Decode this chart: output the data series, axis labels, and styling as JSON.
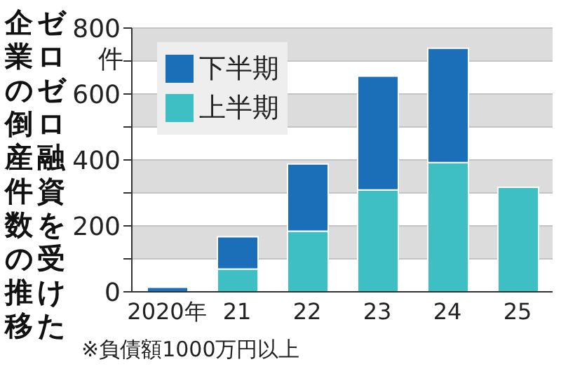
{
  "chart_data": {
    "type": "bar",
    "title": "ゼロゼロ融資を受けた企業の倒産件数の推移",
    "ylabel": "件",
    "categories": [
      "2020年",
      "21",
      "22",
      "23",
      "24",
      "25"
    ],
    "stacked": true,
    "series": [
      {
        "name": "上半期",
        "color": "#3dbfc4",
        "values": [
          0,
          69,
          184,
          309,
          392,
          317
        ]
      },
      {
        "name": "下半期",
        "color": "#1a6fb8",
        "values": [
          14,
          98,
          204,
          345,
          347,
          null
        ]
      }
    ],
    "ylim": [
      0,
      800
    ],
    "yticks": [
      0,
      {
        "value": 100,
        "label": null
      },
      200,
      {
        "value": 300,
        "label": null
      },
      400,
      {
        "value": 500,
        "label": null
      },
      600,
      {
        "value": 700,
        "label": null
      },
      800
    ],
    "grid": "y",
    "legend": "top left",
    "annotations": [
      "※負債額1000万円以上"
    ]
  }
}
